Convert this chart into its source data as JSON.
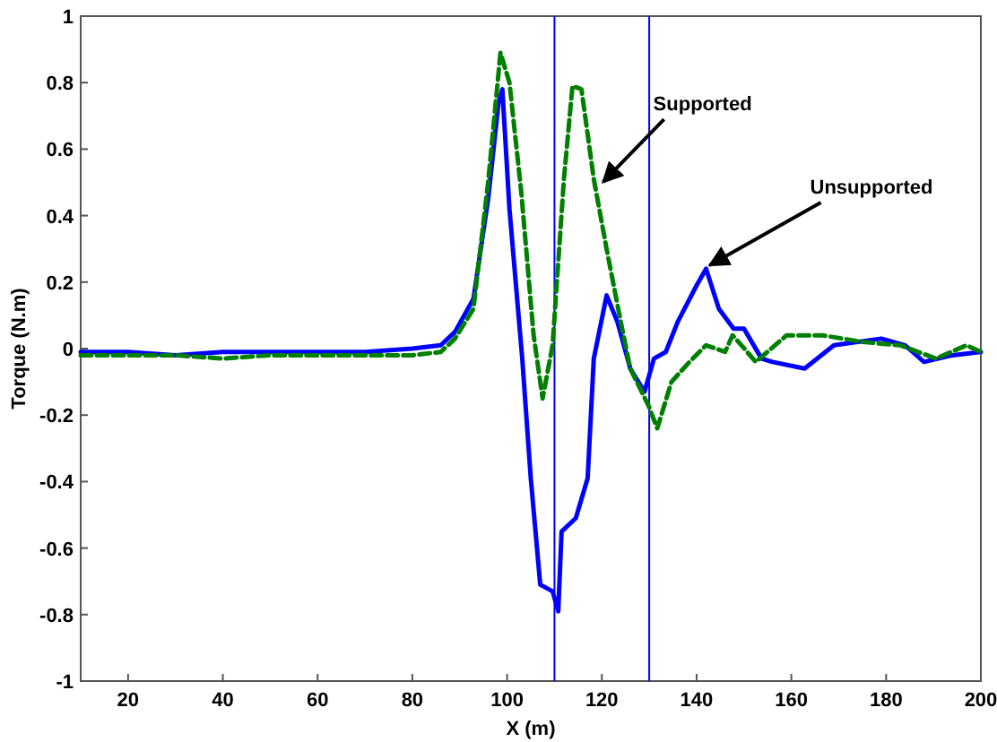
{
  "chart_data": {
    "type": "line",
    "xlabel": "X (m)",
    "ylabel": "Torque (N.m)",
    "xlim": [
      10,
      200
    ],
    "ylim": [
      -1,
      1
    ],
    "xticks": [
      20,
      40,
      60,
      80,
      100,
      120,
      140,
      160,
      180,
      200
    ],
    "yticks": [
      -1,
      -0.8,
      -0.6,
      -0.4,
      -0.2,
      0,
      0.2,
      0.4,
      0.6,
      0.8,
      1
    ],
    "grid": false,
    "series": [
      {
        "color": "#0000ff",
        "line_style": "solid",
        "x": [
          10,
          20,
          30,
          40,
          50,
          60,
          70,
          80,
          86,
          89,
          92.9,
          96,
          98.2,
          99,
          100.5,
          103.2,
          105,
          107,
          109.6,
          110.8,
          111.5,
          114.5,
          117,
          118.3,
          121,
          123.3,
          126,
          129,
          131,
          133.5,
          136,
          140,
          142,
          144.7,
          147.8,
          150,
          153.7,
          156,
          162.8,
          169,
          179,
          184,
          188,
          194,
          200
        ],
        "values": [
          -0.01,
          -0.01,
          -0.02,
          -0.01,
          -0.01,
          -0.01,
          -0.01,
          0,
          0.01,
          0.05,
          0.15,
          0.45,
          0.74,
          0.78,
          0.42,
          -0.03,
          -0.39,
          -0.71,
          -0.73,
          -0.79,
          -0.55,
          -0.51,
          -0.39,
          -0.03,
          0.16,
          0.08,
          -0.06,
          -0.13,
          -0.03,
          -0.01,
          0.08,
          0.19,
          0.24,
          0.12,
          0.06,
          0.06,
          -0.03,
          -0.04,
          -0.06,
          0.01,
          0.03,
          0.01,
          -0.04,
          -0.02,
          -0.01
        ]
      },
      {
        "color": "#007f00",
        "line_style": "dashed",
        "x": [
          10,
          20,
          30,
          40,
          50,
          60,
          70,
          80,
          86,
          89,
          92.9,
          96,
          98.6,
          100.5,
          103,
          105.6,
          107.5,
          109.6,
          112,
          113.8,
          115.7,
          118.3,
          121,
          124,
          126,
          129.8,
          131.7,
          134.7,
          138.5,
          142,
          146,
          147.6,
          152.5,
          159,
          166.6,
          175,
          183,
          190.5,
          197,
          200
        ],
        "values": [
          -0.02,
          -0.02,
          -0.02,
          -0.03,
          -0.02,
          -0.02,
          -0.02,
          -0.02,
          -0.01,
          0.03,
          0.12,
          0.5,
          0.89,
          0.8,
          0.47,
          0.04,
          -0.15,
          0.01,
          0.51,
          0.79,
          0.78,
          0.51,
          0.3,
          0.08,
          -0.06,
          -0.17,
          -0.24,
          -0.1,
          -0.04,
          0.01,
          -0.01,
          0.04,
          -0.04,
          0.04,
          0.04,
          0.02,
          0.01,
          -0.03,
          0.01,
          -0.01
        ]
      }
    ],
    "ref_lines": [
      {
        "axis": "x",
        "value": 110,
        "color": "#0000ff"
      },
      {
        "axis": "x",
        "value": 130,
        "color": "#0000ff"
      }
    ],
    "annotations": [
      {
        "text": "Supported",
        "x": 119.5,
        "y": 0.49
      },
      {
        "text": "Unsupported",
        "x": 142,
        "y": 0.24
      }
    ]
  }
}
